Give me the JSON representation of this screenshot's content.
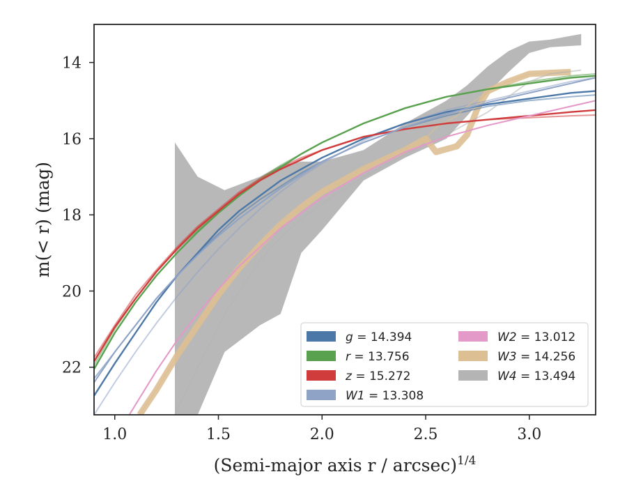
{
  "chart_data": {
    "type": "line",
    "xlabel": "(Semi-major axis r / arcsec)",
    "xlabel_power": "1/4",
    "ylabel": "m(< r) (mag)",
    "xlim": [
      0.9,
      3.32
    ],
    "ylim": [
      23.25,
      13.0
    ],
    "y_inverted": true,
    "xticks": [
      1.0,
      1.5,
      2.0,
      2.5,
      3.0
    ],
    "xtick_labels": [
      "1.0",
      "1.5",
      "2.0",
      "2.5",
      "3.0"
    ],
    "yticks": [
      14,
      16,
      18,
      20,
      22
    ],
    "ytick_labels": [
      "14",
      "16",
      "18",
      "20",
      "22"
    ],
    "grid": false,
    "legend_position": "lower-right",
    "series": [
      {
        "name": "g",
        "legend_value": "= 14.394",
        "color": "#4c78a8",
        "x": [
          0.9,
          1.0,
          1.1,
          1.2,
          1.3,
          1.4,
          1.5,
          1.6,
          1.7,
          1.8,
          1.9,
          2.0,
          2.2,
          2.4,
          2.6,
          2.8,
          3.0,
          3.2,
          3.32
        ],
        "y": [
          22.75,
          21.9,
          21.1,
          20.3,
          19.6,
          19.0,
          18.4,
          17.9,
          17.5,
          17.1,
          16.8,
          16.5,
          16.0,
          15.6,
          15.3,
          15.1,
          14.95,
          14.8,
          14.75
        ],
        "y_model": [
          22.3,
          21.6,
          20.9,
          20.2,
          19.6,
          19.0,
          18.5,
          18.0,
          17.6,
          17.25,
          16.9,
          16.6,
          16.1,
          15.7,
          15.4,
          15.15,
          15.0,
          14.9,
          14.85
        ]
      },
      {
        "name": "r",
        "legend_value": "= 13.756",
        "color": "#59a14f",
        "x": [
          0.9,
          1.0,
          1.1,
          1.2,
          1.3,
          1.4,
          1.5,
          1.6,
          1.7,
          1.8,
          1.9,
          2.0,
          2.2,
          2.4,
          2.6,
          2.8,
          3.0,
          3.2,
          3.32
        ],
        "y": [
          22.05,
          21.1,
          20.3,
          19.6,
          19.0,
          18.45,
          17.95,
          17.5,
          17.1,
          16.75,
          16.4,
          16.1,
          15.6,
          15.2,
          14.9,
          14.7,
          14.55,
          14.4,
          14.35
        ],
        "y_model": [
          21.95,
          21.0,
          20.2,
          19.5,
          18.9,
          18.4,
          17.9,
          17.45,
          17.05,
          16.7,
          16.4,
          16.1,
          15.6,
          15.2,
          14.9,
          14.7,
          14.5,
          14.35,
          14.3
        ]
      },
      {
        "name": "z",
        "legend_value": "= 15.272",
        "color": "#d03b3b",
        "x": [
          0.9,
          1.0,
          1.1,
          1.2,
          1.3,
          1.4,
          1.5,
          1.6,
          1.7,
          1.8,
          1.9,
          2.0,
          2.2,
          2.4,
          2.6,
          2.8,
          3.0,
          3.2,
          3.32
        ],
        "y": [
          21.85,
          20.95,
          20.2,
          19.5,
          18.9,
          18.35,
          17.9,
          17.45,
          17.1,
          16.8,
          16.55,
          16.3,
          15.95,
          15.75,
          15.6,
          15.5,
          15.4,
          15.3,
          15.25
        ],
        "y_model": [
          21.75,
          20.9,
          20.1,
          19.45,
          18.85,
          18.3,
          17.85,
          17.4,
          17.05,
          16.75,
          16.5,
          16.3,
          15.95,
          15.75,
          15.6,
          15.5,
          15.45,
          15.4,
          15.38
        ]
      },
      {
        "name": "W1",
        "legend_value": "= 13.308",
        "color": "#8fa3c7",
        "x": [
          0.9,
          1.0,
          1.1,
          1.2,
          1.3,
          1.4,
          1.5,
          1.6,
          1.7,
          1.8,
          1.9,
          2.0,
          2.2,
          2.4,
          2.6,
          2.8,
          3.0,
          3.2,
          3.32
        ],
        "y": [
          22.4,
          21.6,
          20.9,
          20.2,
          19.6,
          19.05,
          18.55,
          18.1,
          17.7,
          17.3,
          16.95,
          16.6,
          16.1,
          15.7,
          15.35,
          15.05,
          14.8,
          14.55,
          14.4
        ],
        "y_model": [
          23.25,
          22.4,
          21.6,
          20.85,
          20.15,
          19.5,
          18.9,
          18.35,
          17.85,
          17.4,
          17.0,
          16.65,
          16.05,
          15.6,
          15.25,
          15.0,
          14.75,
          14.5,
          14.4
        ]
      },
      {
        "name": "W2",
        "legend_value": "= 13.012",
        "color": "#e39ac8",
        "x": [
          1.07,
          1.2,
          1.3,
          1.4,
          1.5,
          1.6,
          1.7,
          1.8,
          1.9,
          2.0,
          2.2,
          2.4,
          2.6,
          2.8,
          3.0,
          3.2,
          3.32
        ],
        "y": [
          23.25,
          22.1,
          21.3,
          20.6,
          19.95,
          19.35,
          18.85,
          18.35,
          17.95,
          17.55,
          16.9,
          16.35,
          15.95,
          15.65,
          15.4,
          15.15,
          15.0
        ],
        "y_model": [
          23.25,
          22.1,
          21.3,
          20.6,
          19.95,
          19.35,
          18.85,
          18.35,
          17.95,
          17.55,
          16.9,
          16.35,
          15.95,
          15.65,
          15.4,
          15.15,
          15.0
        ]
      },
      {
        "name": "W3",
        "legend_value": "= 14.256",
        "color": "#ddbf94",
        "x": [
          1.12,
          1.2,
          1.3,
          1.4,
          1.5,
          1.6,
          1.7,
          1.8,
          1.9,
          2.0,
          2.2,
          2.4,
          2.5,
          2.55,
          2.65,
          2.7,
          2.75,
          2.8,
          2.9,
          3.0,
          3.2
        ],
        "y": [
          23.25,
          22.6,
          21.7,
          20.9,
          20.1,
          19.4,
          18.8,
          18.25,
          17.8,
          17.4,
          16.8,
          16.3,
          16.0,
          16.35,
          16.2,
          15.9,
          15.2,
          14.75,
          14.5,
          14.3,
          14.25
        ],
        "y_model": [
          23.25,
          22.6,
          21.7,
          20.9,
          20.1,
          19.4,
          18.8,
          18.25,
          17.8,
          17.4,
          16.8,
          16.3,
          16.0,
          15.7,
          15.4,
          15.15,
          14.95,
          14.75,
          14.5,
          14.3,
          14.25
        ]
      },
      {
        "name": "W4",
        "legend_value": "= 13.494",
        "color": "#b4b4b4",
        "x": [
          1.29,
          1.4,
          1.53,
          1.7,
          1.8,
          1.9,
          2.0,
          2.2,
          2.4,
          2.6,
          2.7,
          2.8,
          2.9,
          3.0,
          3.1,
          3.25
        ],
        "y": [
          23.25,
          20.3,
          19.0,
          18.4,
          17.8,
          17.4,
          17.1,
          16.6,
          16.1,
          15.6,
          15.1,
          14.5,
          14.0,
          13.6,
          13.5,
          13.4
        ],
        "y_upper": [
          16.1,
          17.0,
          17.35,
          17.0,
          16.7,
          16.6,
          16.6,
          16.3,
          15.6,
          15.0,
          14.6,
          14.1,
          13.7,
          13.45,
          13.4,
          13.25
        ],
        "y_lower": [
          23.25,
          23.25,
          21.6,
          20.9,
          20.6,
          19.0,
          18.4,
          17.1,
          16.5,
          16.0,
          15.4,
          14.8,
          14.25,
          13.75,
          13.6,
          13.55
        ],
        "y_model": [
          23.25,
          22.0,
          20.6,
          19.2,
          18.6,
          18.1,
          17.7,
          17.0,
          16.4,
          15.9,
          15.6,
          15.3,
          14.9,
          14.5,
          14.3,
          14.2
        ]
      }
    ]
  }
}
